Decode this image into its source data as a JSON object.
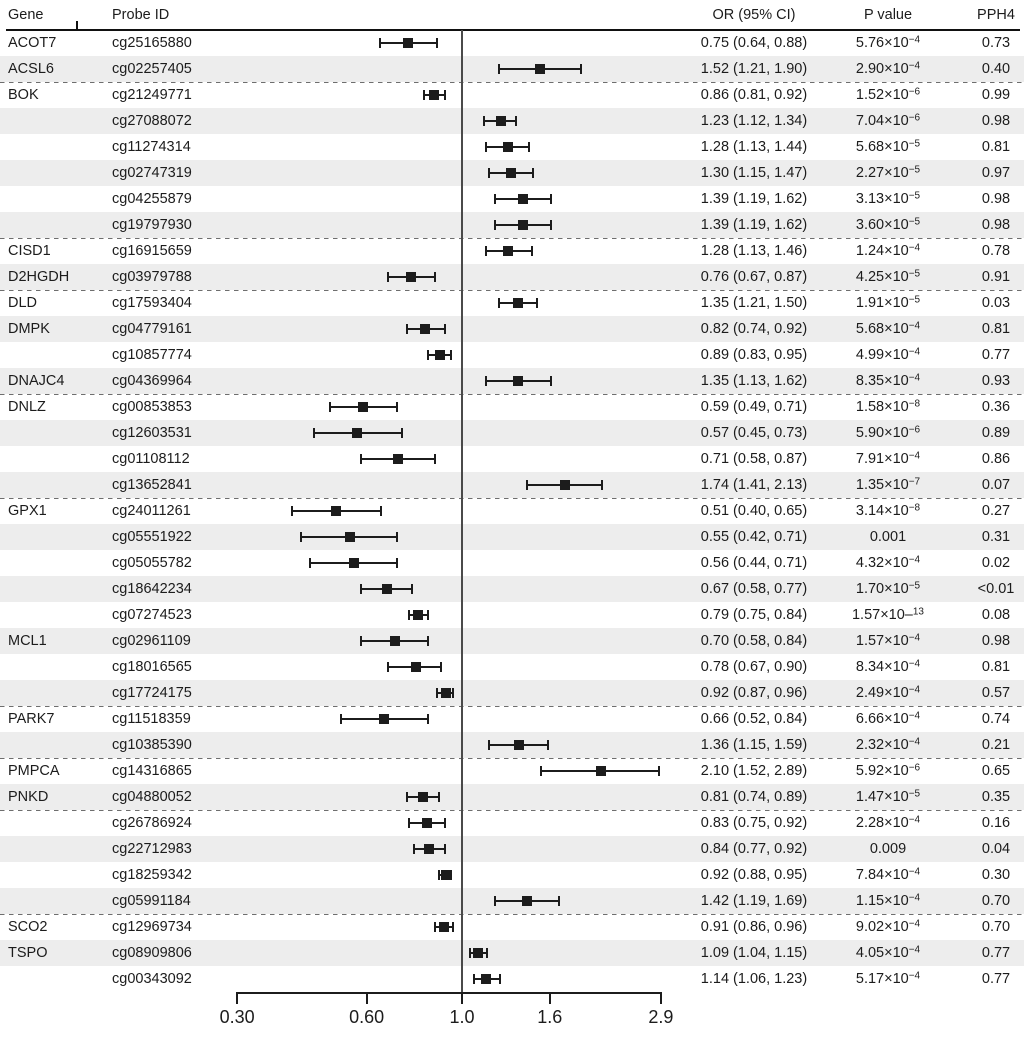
{
  "figure": {
    "header": {
      "gene": "Gene",
      "probe_id": "Probe ID",
      "or_ci": "OR (95% CI)",
      "p_value": "P value",
      "pph4": "PPH4"
    },
    "colors": {
      "marker": "#1c1c1c",
      "row_shade": "#ededed",
      "separator": "#6e6e6e",
      "reference_line": "#4a4a4a"
    }
  },
  "chart_data": {
    "type": "forest",
    "x_scale": "log10",
    "x_range": [
      0.3,
      2.9
    ],
    "reference_line": 1.0,
    "grid": false,
    "x_axis_tick_values": [
      0.3,
      0.6,
      1.0,
      1.6,
      2.9
    ],
    "x_axis_tick_labels": [
      "0.30",
      "0.60",
      "1.0",
      "1.6",
      "2.9"
    ],
    "rows": [
      {
        "gene": "ACOT7",
        "probe": "cg25165880",
        "or": 0.75,
        "ci": [
          0.64,
          0.88
        ],
        "or_text": "0.75 (0.64, 0.88)",
        "p_base": "5.76×10",
        "p_sup": "−4",
        "pph4": "0.73",
        "sep_after": true
      },
      {
        "gene": "ACSL6",
        "probe": "cg02257405",
        "or": 1.52,
        "ci": [
          1.21,
          1.9
        ],
        "or_text": "1.52 (1.21, 1.90)",
        "p_base": "2.90×10",
        "p_sup": "−4",
        "pph4": "0.40",
        "sep_after": true
      },
      {
        "gene": "BOK",
        "probe": "cg21249771",
        "or": 0.86,
        "ci": [
          0.81,
          0.92
        ],
        "or_text": "0.86 (0.81, 0.92)",
        "p_base": "1.52×10",
        "p_sup": "−6",
        "pph4": "0.99",
        "sep_after": false
      },
      {
        "gene": "",
        "probe": "cg27088072",
        "or": 1.23,
        "ci": [
          1.12,
          1.34
        ],
        "or_text": "1.23 (1.12, 1.34)",
        "p_base": "7.04×10",
        "p_sup": "−6",
        "pph4": "0.98",
        "sep_after": false
      },
      {
        "gene": "",
        "probe": "cg11274314",
        "or": 1.28,
        "ci": [
          1.13,
          1.44
        ],
        "or_text": "1.28 (1.13, 1.44)",
        "p_base": "5.68×10",
        "p_sup": "−5",
        "pph4": "0.81",
        "sep_after": false
      },
      {
        "gene": "",
        "probe": "cg02747319",
        "or": 1.3,
        "ci": [
          1.15,
          1.47
        ],
        "or_text": "1.30 (1.15, 1.47)",
        "p_base": "2.27×10",
        "p_sup": "−5",
        "pph4": "0.97",
        "sep_after": false
      },
      {
        "gene": "",
        "probe": "cg04255879",
        "or": 1.39,
        "ci": [
          1.19,
          1.62
        ],
        "or_text": "1.39 (1.19, 1.62)",
        "p_base": "3.13×10",
        "p_sup": "−5",
        "pph4": "0.98",
        "sep_after": false
      },
      {
        "gene": "",
        "probe": "cg19797930",
        "or": 1.39,
        "ci": [
          1.19,
          1.62
        ],
        "or_text": "1.39 (1.19, 1.62)",
        "p_base": "3.60×10",
        "p_sup": "−5",
        "pph4": "0.98",
        "sep_after": true
      },
      {
        "gene": "CISD1",
        "probe": "cg16915659",
        "or": 1.28,
        "ci": [
          1.13,
          1.46
        ],
        "or_text": "1.28 (1.13, 1.46)",
        "p_base": "1.24×10",
        "p_sup": "−4",
        "pph4": "0.78",
        "sep_after": true
      },
      {
        "gene": "D2HGDH",
        "probe": "cg03979788",
        "or": 0.76,
        "ci": [
          0.67,
          0.87
        ],
        "or_text": "0.76 (0.67, 0.87)",
        "p_base": "4.25×10",
        "p_sup": "−5",
        "pph4": "0.91",
        "sep_after": true
      },
      {
        "gene": "DLD",
        "probe": "cg17593404",
        "or": 1.35,
        "ci": [
          1.21,
          1.5
        ],
        "or_text": "1.35 (1.21, 1.50)",
        "p_base": "1.91×10",
        "p_sup": "−5",
        "pph4": "0.03",
        "sep_after": true
      },
      {
        "gene": "DMPK",
        "probe": "cg04779161",
        "or": 0.82,
        "ci": [
          0.74,
          0.92
        ],
        "or_text": "0.82 (0.74, 0.92)",
        "p_base": "5.68×10",
        "p_sup": "−4",
        "pph4": "0.81",
        "sep_after": false
      },
      {
        "gene": "",
        "probe": "cg10857774",
        "or": 0.89,
        "ci": [
          0.83,
          0.95
        ],
        "or_text": "0.89 (0.83, 0.95)",
        "p_base": "4.99×10",
        "p_sup": "−4",
        "pph4": "0.77",
        "sep_after": true
      },
      {
        "gene": "DNAJC4",
        "probe": "cg04369964",
        "or": 1.35,
        "ci": [
          1.13,
          1.62
        ],
        "or_text": "1.35 (1.13, 1.62)",
        "p_base": "8.35×10",
        "p_sup": "−4",
        "pph4": "0.93",
        "sep_after": true
      },
      {
        "gene": "DNLZ",
        "probe": "cg00853853",
        "or": 0.59,
        "ci": [
          0.49,
          0.71
        ],
        "or_text": "0.59 (0.49, 0.71)",
        "p_base": "1.58×10",
        "p_sup": "−8",
        "pph4": "0.36",
        "sep_after": false
      },
      {
        "gene": "",
        "probe": "cg12603531",
        "or": 0.57,
        "ci": [
          0.45,
          0.73
        ],
        "or_text": "0.57 (0.45, 0.73)",
        "p_base": "5.90×10",
        "p_sup": "−6",
        "pph4": "0.89",
        "sep_after": false
      },
      {
        "gene": "",
        "probe": "cg01108112",
        "or": 0.71,
        "ci": [
          0.58,
          0.87
        ],
        "or_text": "0.71 (0.58, 0.87)",
        "p_base": "7.91×10",
        "p_sup": "−4",
        "pph4": "0.86",
        "sep_after": false
      },
      {
        "gene": "",
        "probe": "cg13652841",
        "or": 1.74,
        "ci": [
          1.41,
          2.13
        ],
        "or_text": "1.74 (1.41, 2.13)",
        "p_base": "1.35×10",
        "p_sup": "−7",
        "pph4": "0.07",
        "sep_after": true
      },
      {
        "gene": "GPX1",
        "probe": "cg24011261",
        "or": 0.51,
        "ci": [
          0.4,
          0.65
        ],
        "or_text": "0.51 (0.40, 0.65)",
        "p_base": "3.14×10",
        "p_sup": "−8",
        "pph4": "0.27",
        "sep_after": false
      },
      {
        "gene": "",
        "probe": "cg05551922",
        "or": 0.55,
        "ci": [
          0.42,
          0.71
        ],
        "or_text": "0.55 (0.42, 0.71)",
        "p_base": "0.001",
        "p_sup": "",
        "pph4": "0.31",
        "sep_after": false
      },
      {
        "gene": "",
        "probe": "cg05055782",
        "or": 0.56,
        "ci": [
          0.44,
          0.71
        ],
        "or_text": "0.56 (0.44, 0.71)",
        "p_base": "4.32×10",
        "p_sup": "−4",
        "pph4": "0.02",
        "sep_after": false
      },
      {
        "gene": "",
        "probe": "cg18642234",
        "or": 0.67,
        "ci": [
          0.58,
          0.77
        ],
        "or_text": "0.67 (0.58, 0.77)",
        "p_base": "1.70×10",
        "p_sup": "−5",
        "pph4": "<0.01",
        "sep_after": false
      },
      {
        "gene": "",
        "probe": "cg07274523",
        "or": 0.79,
        "ci": [
          0.75,
          0.84
        ],
        "or_text": "0.79 (0.75, 0.84)",
        "p_base": "1.57×10–",
        "p_sup": "13",
        "pph4": "0.08",
        "sep_after": true
      },
      {
        "gene": "MCL1",
        "probe": "cg02961109",
        "or": 0.7,
        "ci": [
          0.58,
          0.84
        ],
        "or_text": "0.70 (0.58, 0.84)",
        "p_base": "1.57×10",
        "p_sup": "−4",
        "pph4": "0.98",
        "sep_after": false
      },
      {
        "gene": "",
        "probe": "cg18016565",
        "or": 0.78,
        "ci": [
          0.67,
          0.9
        ],
        "or_text": "0.78 (0.67, 0.90)",
        "p_base": "8.34×10",
        "p_sup": "−4",
        "pph4": "0.81",
        "sep_after": false
      },
      {
        "gene": "",
        "probe": "cg17724175",
        "or": 0.92,
        "ci": [
          0.87,
          0.96
        ],
        "or_text": "0.92 (0.87, 0.96)",
        "p_base": "2.49×10",
        "p_sup": "−4",
        "pph4": "0.57",
        "sep_after": true
      },
      {
        "gene": "PARK7",
        "probe": "cg11518359",
        "or": 0.66,
        "ci": [
          0.52,
          0.84
        ],
        "or_text": "0.66 (0.52, 0.84)",
        "p_base": "6.66×10",
        "p_sup": "−4",
        "pph4": "0.74",
        "sep_after": false
      },
      {
        "gene": "",
        "probe": "cg10385390",
        "or": 1.36,
        "ci": [
          1.15,
          1.59
        ],
        "or_text": "1.36 (1.15, 1.59)",
        "p_base": "2.32×10",
        "p_sup": "−4",
        "pph4": "0.21",
        "sep_after": true
      },
      {
        "gene": "PMPCA",
        "probe": "cg14316865",
        "or": 2.1,
        "ci": [
          1.52,
          2.89
        ],
        "or_text": "2.10 (1.52, 2.89)",
        "p_base": "5.92×10",
        "p_sup": "−6",
        "pph4": "0.65",
        "sep_after": true
      },
      {
        "gene": "PNKD",
        "probe": "cg04880052",
        "or": 0.81,
        "ci": [
          0.74,
          0.89
        ],
        "or_text": "0.81 (0.74, 0.89)",
        "p_base": "1.47×10",
        "p_sup": "−5",
        "pph4": "0.35",
        "sep_after": true
      },
      {
        "gene": "",
        "probe": "cg26786924",
        "or": 0.83,
        "ci": [
          0.75,
          0.92
        ],
        "or_text": "0.83 (0.75, 0.92)",
        "p_base": "2.28×10",
        "p_sup": "−4",
        "pph4": "0.16",
        "sep_after": false
      },
      {
        "gene": "",
        "probe": "cg22712983",
        "or": 0.84,
        "ci": [
          0.77,
          0.92
        ],
        "or_text": "0.84 (0.77, 0.92)",
        "p_base": "0.009",
        "p_sup": "",
        "pph4": "0.04",
        "sep_after": false
      },
      {
        "gene": "",
        "probe": "cg18259342",
        "or": 0.92,
        "ci": [
          0.88,
          0.95
        ],
        "or_text": "0.92 (0.88, 0.95)",
        "p_base": "7.84×10",
        "p_sup": "−4",
        "pph4": "0.30",
        "sep_after": false
      },
      {
        "gene": "",
        "probe": "cg05991184",
        "or": 1.42,
        "ci": [
          1.19,
          1.69
        ],
        "or_text": "1.42 (1.19, 1.69)",
        "p_base": "1.15×10",
        "p_sup": "−4",
        "pph4": "0.70",
        "sep_after": true
      },
      {
        "gene": "SCO2",
        "probe": "cg12969734",
        "or": 0.91,
        "ci": [
          0.86,
          0.96
        ],
        "or_text": "0.91 (0.86, 0.96)",
        "p_base": "9.02×10",
        "p_sup": "−4",
        "pph4": "0.70",
        "sep_after": true
      },
      {
        "gene": "TSPO",
        "probe": "cg08909806",
        "or": 1.09,
        "ci": [
          1.04,
          1.15
        ],
        "or_text": "1.09 (1.04, 1.15)",
        "p_base": "4.05×10",
        "p_sup": "−4",
        "pph4": "0.77",
        "sep_after": false
      },
      {
        "gene": "",
        "probe": "cg00343092",
        "or": 1.14,
        "ci": [
          1.06,
          1.23
        ],
        "or_text": "1.14 (1.06, 1.23)",
        "p_base": "5.17×10",
        "p_sup": "−4",
        "pph4": "0.77",
        "sep_after": false
      }
    ]
  }
}
